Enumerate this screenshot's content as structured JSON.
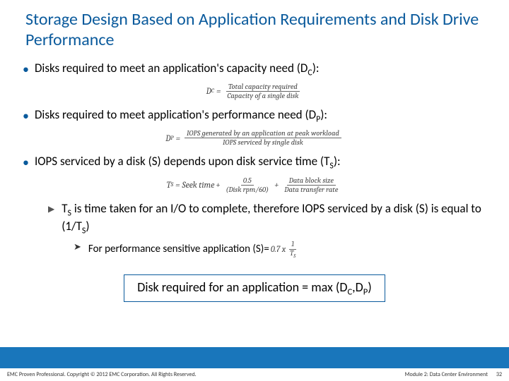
{
  "title": "Storage Design Based on Application Requirements and Disk Drive Performance",
  "bullets": {
    "b1": {
      "pre": "Disks required to meet an application's capacity need (D",
      "sub": "C",
      "post": "):"
    },
    "b2": {
      "pre": "Disks required to meet application's performance need (D",
      "sub": "P",
      "post": "):"
    },
    "b3": {
      "pre": "IOPS serviced by a disk (S) depends upon disk service time (T",
      "sub": "S",
      "post": "):"
    }
  },
  "formulas": {
    "dc": {
      "lhs": "D",
      "lhs_sub": "C",
      "eq": "=",
      "num": "Total capacity required",
      "den": "Capacity of a single disk"
    },
    "dp": {
      "lhs": "D",
      "lhs_sub": "P",
      "eq": "=",
      "num": "IOPS generated by an application at peak workload",
      "den": "IOPS serviced by single disk"
    },
    "ts": {
      "lhs": "T",
      "lhs_sub": "S",
      "eq": "=",
      "t1": "Seek time",
      "plus1": "+",
      "f1_num": "0.5",
      "f1_den": "(Disk rpm/60)",
      "plus2": "+",
      "f2_num": "Data block size",
      "f2_den": "Data transfer rate"
    },
    "s": {
      "pref": "0.7 x",
      "num": "1",
      "den": "T",
      "den_sub": "S"
    }
  },
  "sub1": {
    "p1": "T",
    "s1": "S",
    "p2": " is time taken for an I/O to complete, therefore IOPS serviced by a disk (S) is equal to (1/T",
    "s2": "S",
    "p3": ")"
  },
  "sub2": {
    "text": "For performance sensitive application (S)="
  },
  "box": {
    "p1": "Disk required for an application = max (D",
    "s1": "C",
    "p2": ",D",
    "s2": "P",
    "p3": ")"
  },
  "footer": {
    "left": "EMC Proven Professional. Copyright © 2012 EMC Corporation. All Rights Reserved.",
    "module": "Module 2: Data Center Environment",
    "page": "32"
  }
}
